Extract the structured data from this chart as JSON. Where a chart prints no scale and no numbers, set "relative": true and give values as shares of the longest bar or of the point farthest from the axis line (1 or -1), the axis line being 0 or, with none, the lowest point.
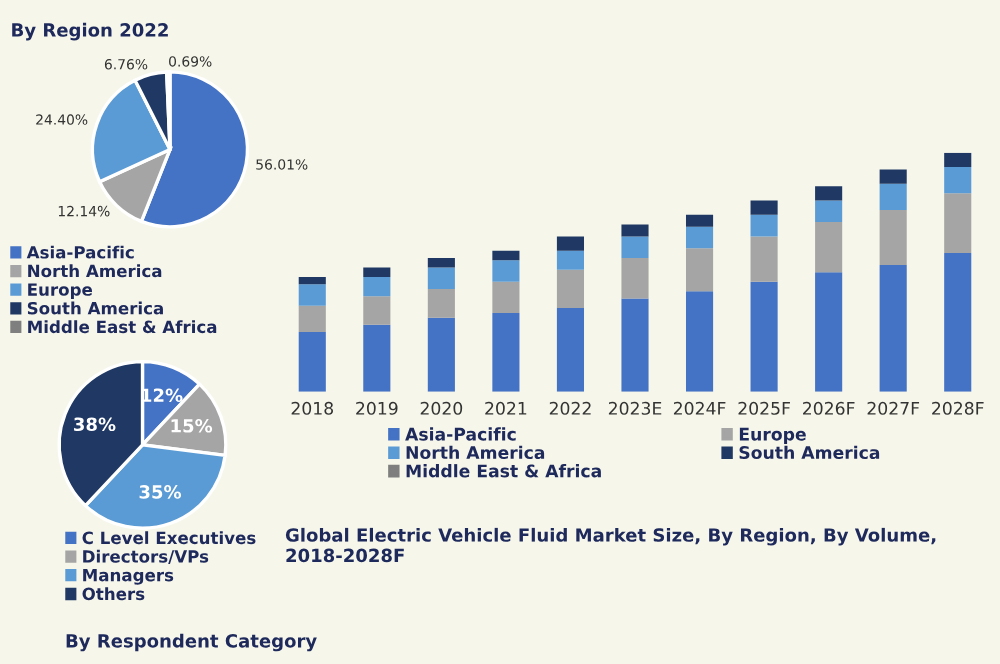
{
  "chart_data": [
    {
      "type": "pie",
      "title": "By Region 2022",
      "categories": [
        "Asia-Pacific",
        "North America",
        "Europe",
        "South America",
        "Middle East & Africa"
      ],
      "values": [
        56.01,
        12.14,
        24.4,
        6.76,
        0.69
      ],
      "colors": [
        "#4472c4",
        "#a5a5a5",
        "#5b9bd5",
        "#1f3864",
        "#7f7f7f"
      ],
      "value_labels": [
        "56.01%",
        "12.14%",
        "24.40%",
        "6.76%",
        "0.69%"
      ],
      "legend": "bottom"
    },
    {
      "type": "pie",
      "title": "By Respondent Category",
      "categories": [
        "C Level Executives",
        "Directors/VPs",
        "Managers",
        "Others"
      ],
      "values": [
        12,
        15,
        35,
        38
      ],
      "colors": [
        "#4472c4",
        "#a5a5a5",
        "#5b9bd5",
        "#1f3864"
      ],
      "value_labels": [
        "12%",
        "15%",
        "35%",
        "38%"
      ],
      "legend": "bottom"
    },
    {
      "type": "bar",
      "stacked": true,
      "relative": true,
      "title": "Global Electric Vehicle Fluid Market Size, By Region, By Volume, 2018-2028F",
      "categories": [
        "2018",
        "2019",
        "2020",
        "2021",
        "2022",
        "2023E",
        "2024F",
        "2025F",
        "2026F",
        "2027F",
        "2028F"
      ],
      "legend": "bottom",
      "series": [
        {
          "name": "Asia-Pacific",
          "color": "#4472c4",
          "values": [
            0.25,
            0.28,
            0.31,
            0.33,
            0.35,
            0.39,
            0.42,
            0.46,
            0.5,
            0.53,
            0.58
          ]
        },
        {
          "name": "Europe",
          "color": "#a5a5a5",
          "values": [
            0.11,
            0.12,
            0.12,
            0.13,
            0.16,
            0.17,
            0.18,
            0.19,
            0.21,
            0.23,
            0.25
          ]
        },
        {
          "name": "North America",
          "color": "#5b9bd5",
          "values": [
            0.09,
            0.08,
            0.09,
            0.09,
            0.08,
            0.09,
            0.09,
            0.09,
            0.09,
            0.11,
            0.11
          ]
        },
        {
          "name": "South America",
          "color": "#1f3864",
          "values": [
            0.03,
            0.04,
            0.04,
            0.04,
            0.06,
            0.05,
            0.05,
            0.06,
            0.06,
            0.06,
            0.06
          ]
        },
        {
          "name": "Middle East & Africa",
          "color": "#7f7f7f",
          "values": [
            null,
            null,
            null,
            null,
            null,
            null,
            null,
            null,
            null,
            null,
            null
          ]
        }
      ]
    }
  ]
}
